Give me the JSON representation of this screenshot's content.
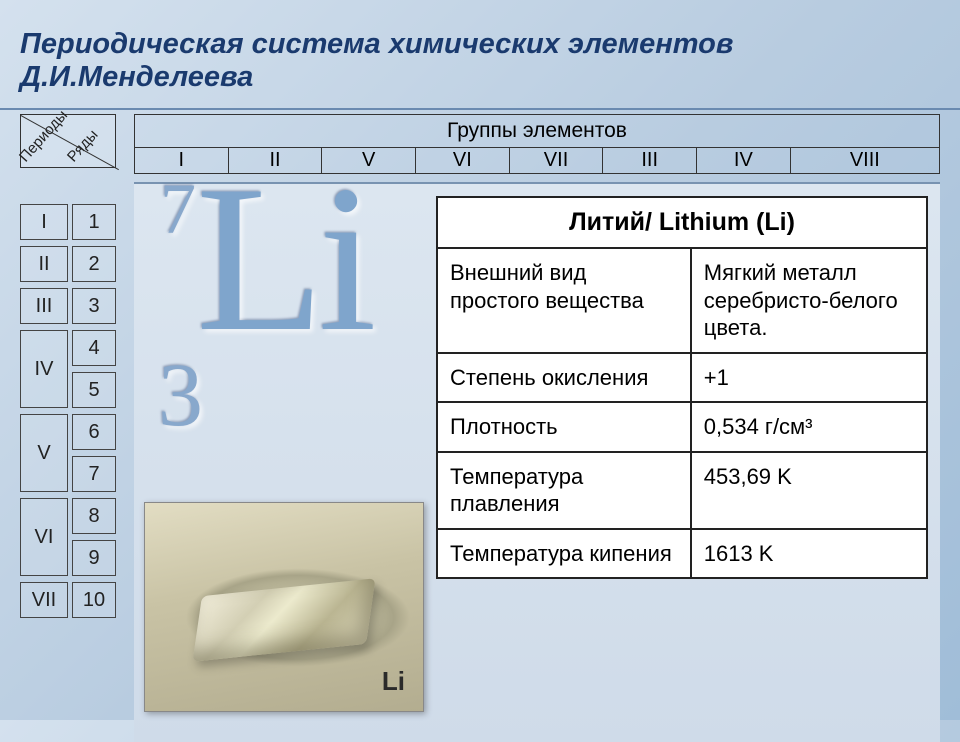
{
  "title": "Периодическая система химических элементов Д.И.Менделеева",
  "labels": {
    "periods": "Периоды",
    "rows": "Ряды",
    "groups_title": "Группы элементов"
  },
  "periods": [
    "I",
    "II",
    "III",
    "IV",
    "V",
    "VI",
    "VII"
  ],
  "rows": [
    "1",
    "2",
    "3",
    "4",
    "5",
    "6",
    "7",
    "8",
    "9",
    "10"
  ],
  "groups": [
    "I",
    "II",
    "V",
    "VI",
    "VII",
    "III",
    "IV",
    "VIII"
  ],
  "element": {
    "mass_number": "7",
    "symbol": "Li",
    "atomic_number": "3",
    "photo_label": "Li"
  },
  "info": {
    "header": "Литий/ Lithium (Li)",
    "r1k": "Внешний вид простого вещества",
    "r1v": "Мягкий металл серебристо-белого цвета.",
    "r2k": "Степень окисления",
    "r2v": "+1",
    "r3k": "Плотность",
    "r3v": "0,534 г/см³",
    "r4k": "Температура плавления",
    "r4v": "453,69 K",
    "r5k": "Температура кипения",
    "r5v": "1613 K"
  },
  "style": {
    "title_color": "#1a3a6e",
    "title_fontsize": 29,
    "bg_gradient": [
      "#d4e1ee",
      "#b8cce0",
      "#a0bdd8"
    ],
    "symbol_color": "#7fa5cc",
    "symbol_fontsize": 210,
    "massnum_fontsize": 72,
    "atomicnum_fontsize": 90,
    "table_border_color": "#222222",
    "table_bg": "#ffffff",
    "table_fontsize": 22,
    "header_fontsize": 25,
    "cell_border_color": "#444444",
    "groups_border_color": "#333333",
    "period_cell_h": 36,
    "period_cell_tall_h": 78,
    "photo_bg": [
      "#e2ddc3",
      "#c9c3a5",
      "#b3ad90"
    ],
    "photo_label_fontsize": 26
  }
}
